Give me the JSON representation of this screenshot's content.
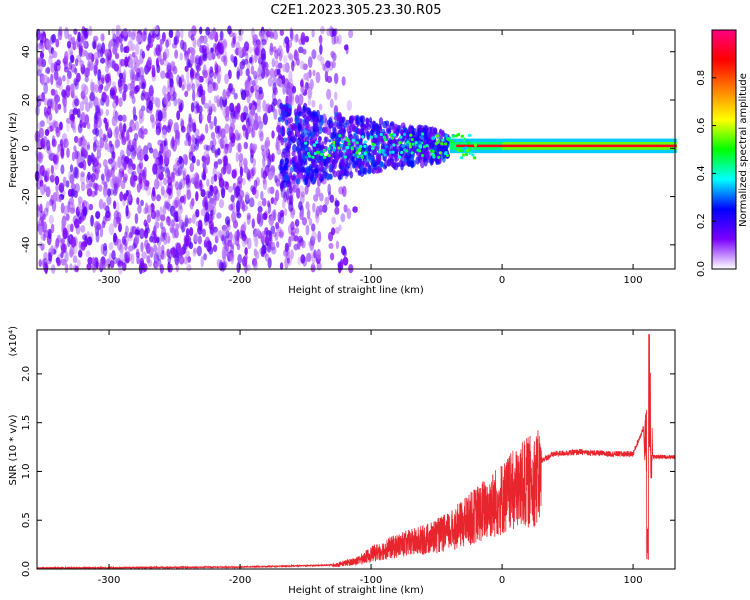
{
  "title": "C2E1.2023.305.23.30.R05",
  "chart_data": [
    {
      "type": "heatmap",
      "xlabel": "Height of straight line (km)",
      "ylabel": "Frequency (Hz)",
      "xlim": [
        -355,
        132
      ],
      "ylim": [
        -50,
        49
      ],
      "xticks": [
        -300,
        -200,
        -100,
        0,
        100
      ],
      "yticks": [
        -40,
        -20,
        0,
        20,
        40
      ],
      "colorbar": {
        "label": "Normalized spectral amplitude",
        "range": [
          0,
          1
        ],
        "ticks": [
          "0.0",
          "0.2",
          "0.4",
          "0.6",
          "0.8"
        ],
        "colors": [
          "#ffffff",
          "#7a00ff",
          "#0000ff",
          "#00ffff",
          "#00ff00",
          "#ffff00",
          "#ff8000",
          "#ff0000",
          "#ff0080"
        ]
      },
      "description": {
        "noise_region_km": [
          -355,
          -165
        ],
        "transition_km": [
          -165,
          -110
        ],
        "signal_line_freq_hz": 1,
        "signal_peak_km": [
          -40,
          130
        ]
      }
    },
    {
      "type": "line",
      "xlabel": "Height of straight line (km)",
      "ylabel": "SNR (10 * v/v)",
      "scale_label": "(x10⁴)",
      "xlim": [
        -355,
        132
      ],
      "ylim": [
        0,
        2.45
      ],
      "xticks": [
        -300,
        -200,
        -100,
        0,
        100
      ],
      "yticks": [
        "0.0",
        "0.5",
        "1.0",
        "1.5",
        "2.0"
      ],
      "color": "#e8252d",
      "envelope_x": [
        -355,
        -200,
        -130,
        -110,
        -100,
        -80,
        -60,
        -40,
        -20,
        0,
        20,
        40,
        60,
        80,
        100,
        108,
        111,
        113,
        115,
        132
      ],
      "envelope_y": [
        0.01,
        0.02,
        0.04,
        0.1,
        0.18,
        0.28,
        0.35,
        0.45,
        0.65,
        0.85,
        1.05,
        1.18,
        1.2,
        1.18,
        1.18,
        1.45,
        0.3,
        2.45,
        1.15,
        1.15
      ],
      "spike_points": [
        [
          111.5,
          0.05
        ],
        [
          112.5,
          2.45
        ],
        [
          109.5,
          1.65
        ]
      ]
    }
  ]
}
